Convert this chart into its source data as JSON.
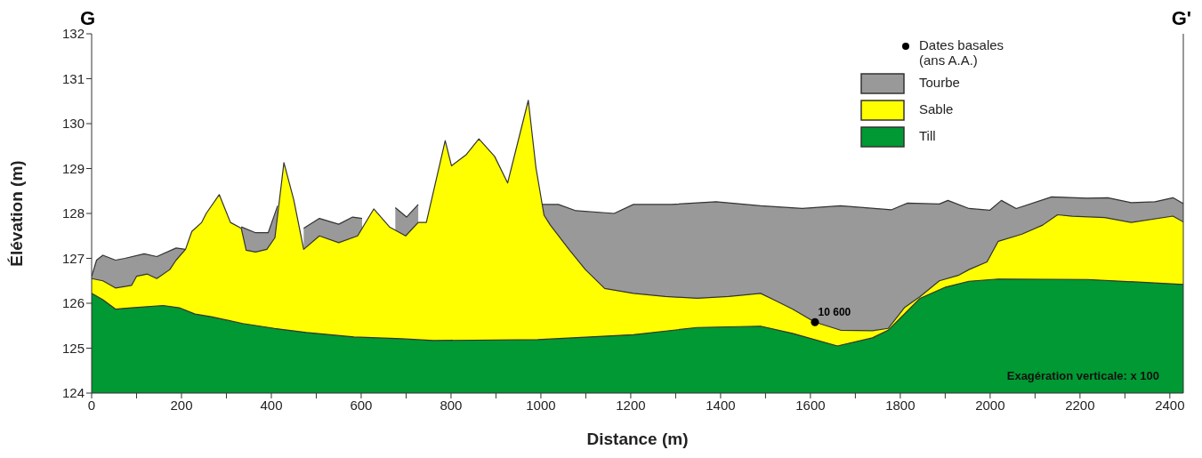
{
  "chart_data": {
    "type": "area",
    "xlabel": "Distance (m)",
    "ylabel": "Élévation (m)",
    "annotations": [
      "G",
      "G'",
      "Exagération verticale: x 100",
      {
        "text": "10 600",
        "x": 1610,
        "y": 125.58
      }
    ],
    "xlim": [
      0,
      2430
    ],
    "ylim": [
      124,
      132
    ],
    "xticks": [
      0,
      {
        "value": 100,
        "label": null
      },
      200,
      {
        "value": 300,
        "label": null
      },
      400,
      {
        "value": 500,
        "label": null
      },
      600,
      {
        "value": 700,
        "label": null
      },
      800,
      {
        "value": 900,
        "label": null
      },
      1000,
      {
        "value": 1100,
        "label": null
      },
      1200,
      {
        "value": 1300,
        "label": null
      },
      1400,
      {
        "value": 1500,
        "label": null
      },
      1600,
      {
        "value": 1700,
        "label": null
      },
      1800,
      {
        "value": 1900,
        "label": null
      },
      2000,
      {
        "value": 2100,
        "label": null
      },
      2200,
      {
        "value": 2300,
        "label": null
      },
      2400
    ],
    "yticks": [
      124,
      125,
      126,
      127,
      128,
      129,
      130,
      131,
      132
    ],
    "grid": false,
    "legend": "top right",
    "series": [
      {
        "name": "Dates basales (ans A.A.)",
        "type": "scatter",
        "color": "#000000",
        "x": [
          1610
        ],
        "values": [
          125.58
        ]
      },
      {
        "name": "Tourbe",
        "color": "#999999",
        "x": [
          0,
          11,
          25,
          53,
          74,
          117,
          145,
          188,
          209,
          215,
          333,
          365,
          393,
          414,
          420,
          472,
          507,
          550,
          581,
          602,
          610,
          676,
          701,
          727,
          740,
          1004,
          1039,
          1078,
          1163,
          1206,
          1291,
          1390,
          1489,
          1582,
          1667,
          1780,
          1816,
          1887,
          1906,
          1953,
          1999,
          2025,
          2058,
          2137,
          2216,
          2262,
          2314,
          2367,
          2407,
          2430
        ],
        "values": [
          126.6,
          126.96,
          127.07,
          126.96,
          127.0,
          127.1,
          127.04,
          127.23,
          127.2,
          null,
          127.7,
          127.57,
          127.57,
          128.17,
          null,
          127.67,
          127.89,
          127.76,
          127.92,
          127.89,
          null,
          128.13,
          127.92,
          128.2,
          null,
          128.2,
          128.2,
          128.06,
          128.0,
          128.2,
          128.2,
          128.26,
          128.17,
          128.11,
          128.17,
          128.08,
          128.23,
          128.21,
          128.29,
          128.11,
          128.07,
          128.29,
          128.11,
          128.37,
          128.34,
          128.35,
          128.24,
          128.26,
          128.35,
          128.22
        ]
      },
      {
        "name": "Sable",
        "color": "#ffff00",
        "x": [
          0,
          25,
          53,
          89,
          100,
          124,
          145,
          174,
          188,
          209,
          223,
          245,
          255,
          284,
          309,
          333,
          344,
          365,
          390,
          408,
          428,
          450,
          472,
          507,
          550,
          592,
          628,
          663,
          699,
          727,
          745,
          787,
          801,
          833,
          862,
          897,
          926,
          972,
          989,
          1007,
          1021,
          1064,
          1099,
          1142,
          1206,
          1277,
          1348,
          1418,
          1489,
          1518,
          1560,
          1610,
          1667,
          1738,
          1773,
          1809,
          1844,
          1887,
          1929,
          1953,
          1993,
          2018,
          2071,
          2117,
          2150,
          2183,
          2255,
          2314,
          2407,
          2430
        ],
        "values": [
          126.55,
          126.5,
          126.34,
          126.4,
          126.6,
          126.65,
          126.55,
          126.75,
          126.96,
          127.2,
          127.6,
          127.8,
          128.0,
          128.42,
          127.8,
          127.67,
          127.18,
          127.14,
          127.2,
          127.46,
          129.13,
          128.3,
          127.2,
          127.5,
          127.35,
          127.5,
          128.1,
          127.7,
          127.5,
          127.8,
          127.8,
          129.62,
          129.06,
          129.3,
          129.66,
          129.27,
          128.68,
          130.52,
          129.02,
          127.96,
          127.74,
          127.18,
          126.75,
          126.33,
          126.22,
          126.15,
          126.11,
          126.15,
          126.22,
          126.08,
          125.87,
          125.58,
          125.4,
          125.39,
          125.44,
          125.9,
          126.15,
          126.5,
          126.62,
          126.75,
          126.92,
          127.38,
          127.54,
          127.74,
          127.97,
          127.94,
          127.91,
          127.8,
          127.94,
          127.81
        ]
      },
      {
        "name": "Till",
        "color": "#009933",
        "x": [
          0,
          25,
          53,
          89,
          159,
          195,
          230,
          266,
          336,
          407,
          478,
          584,
          690,
          761,
          993,
          1206,
          1348,
          1489,
          1560,
          1660,
          1738,
          1773,
          1844,
          1901,
          1953,
          2018,
          2216,
          2430
        ],
        "values": [
          126.22,
          126.08,
          125.87,
          125.9,
          125.95,
          125.9,
          125.76,
          125.7,
          125.55,
          125.44,
          125.35,
          125.25,
          125.21,
          125.17,
          125.19,
          125.3,
          125.46,
          125.49,
          125.33,
          125.05,
          125.23,
          125.4,
          126.11,
          126.36,
          126.49,
          126.54,
          126.53,
          126.42
        ]
      }
    ]
  }
}
